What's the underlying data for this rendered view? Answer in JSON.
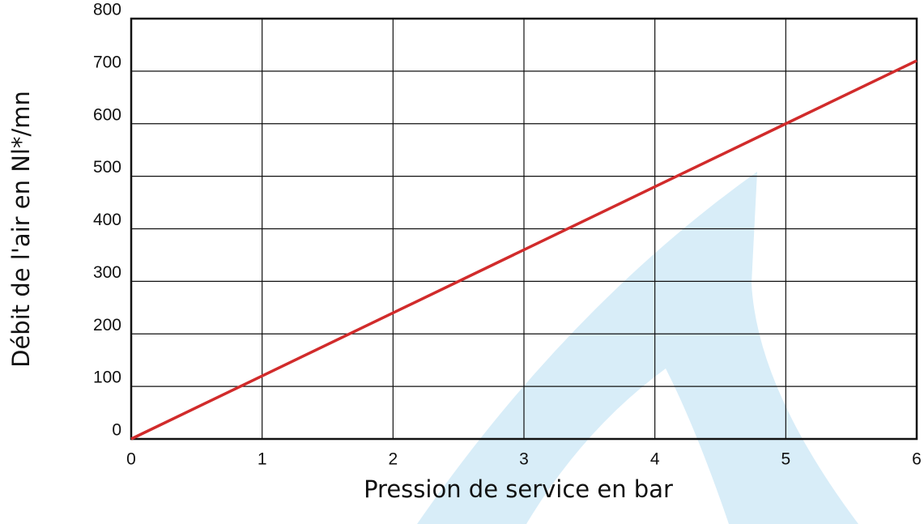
{
  "chart_data": {
    "type": "line",
    "x_label": "Pression de service en bar",
    "y_label": "Débit de l'air en Nl*/mn",
    "x": [
      0,
      1,
      2,
      3,
      4,
      5,
      6
    ],
    "series": [
      {
        "color": "#d12b2b",
        "values": [
          0,
          120,
          240,
          360,
          480,
          600,
          720
        ]
      }
    ],
    "xlim": [
      0,
      6
    ],
    "xticks": [
      0,
      1,
      2,
      3,
      4,
      5,
      6
    ],
    "ylim": [
      0,
      800
    ],
    "yticks": [
      0,
      100,
      200,
      300,
      400,
      500,
      600,
      700,
      800
    ],
    "grid": true
  }
}
